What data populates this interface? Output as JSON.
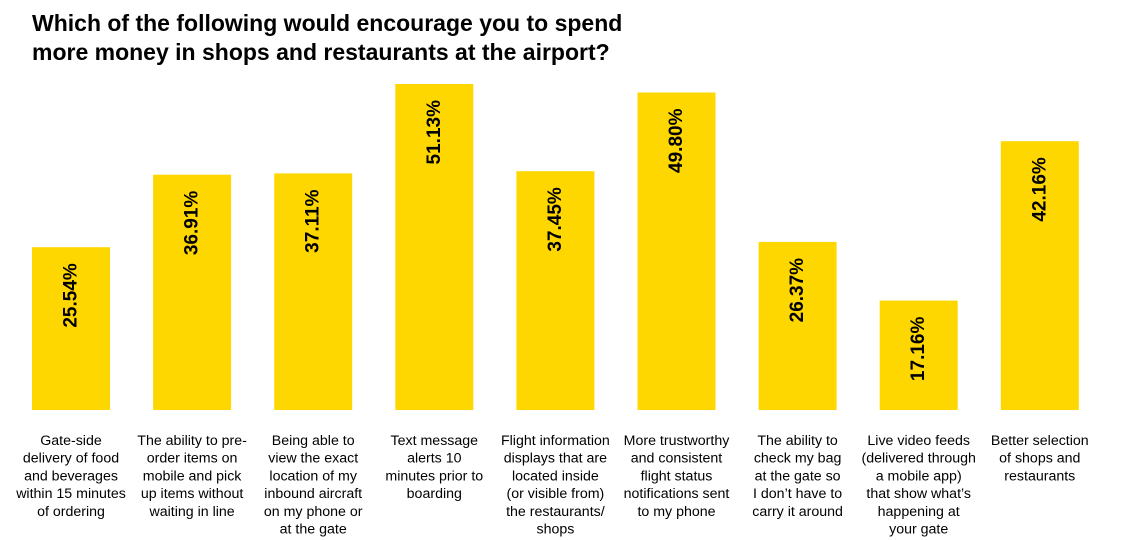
{
  "title_lines": [
    "Which of the following would encourage you to spend",
    "more money in shops and restaurants at the airport?"
  ],
  "bar_color": "#FFD700",
  "chart_data": {
    "type": "bar",
    "title": "Which of the following would encourage you to spend more money in shops and restaurants at the airport?",
    "categories": [
      [
        "Gate-side",
        "delivery of food",
        "and beverages",
        "within 15 minutes",
        "of ordering"
      ],
      [
        "The ability to pre-",
        "order items on",
        "mobile and pick",
        "up items without",
        "waiting in line"
      ],
      [
        "Being able to",
        "view the exact",
        "location of my",
        "inbound aircraft",
        "on my phone or",
        "at the gate"
      ],
      [
        "Text message",
        "alerts 10",
        "minutes prior to",
        "boarding"
      ],
      [
        "Flight information",
        "displays that are",
        "located inside",
        "(or visible from)",
        "the restaurants/",
        "shops"
      ],
      [
        "More trustworthy",
        "and consistent",
        "flight status",
        "notifications sent",
        "to my phone"
      ],
      [
        "The ability to",
        "check my bag",
        "at the gate so",
        "I don’t have to",
        "carry it around"
      ],
      [
        "Live video feeds",
        "(delivered through",
        "a mobile app)",
        "that show what’s",
        "happening at",
        "your gate"
      ],
      [
        "Better selection",
        "of shops and",
        "restaurants"
      ]
    ],
    "values": [
      25.54,
      36.91,
      37.11,
      51.13,
      37.45,
      49.8,
      26.37,
      17.16,
      42.16
    ],
    "value_labels": [
      "25.54%",
      "36.91%",
      "37.11%",
      "51.13%",
      "37.45%",
      "49.80%",
      "26.37%",
      "17.16%",
      "42.16%"
    ],
    "ylim": [
      0,
      51.13
    ],
    "grid": false,
    "legend": "none"
  }
}
